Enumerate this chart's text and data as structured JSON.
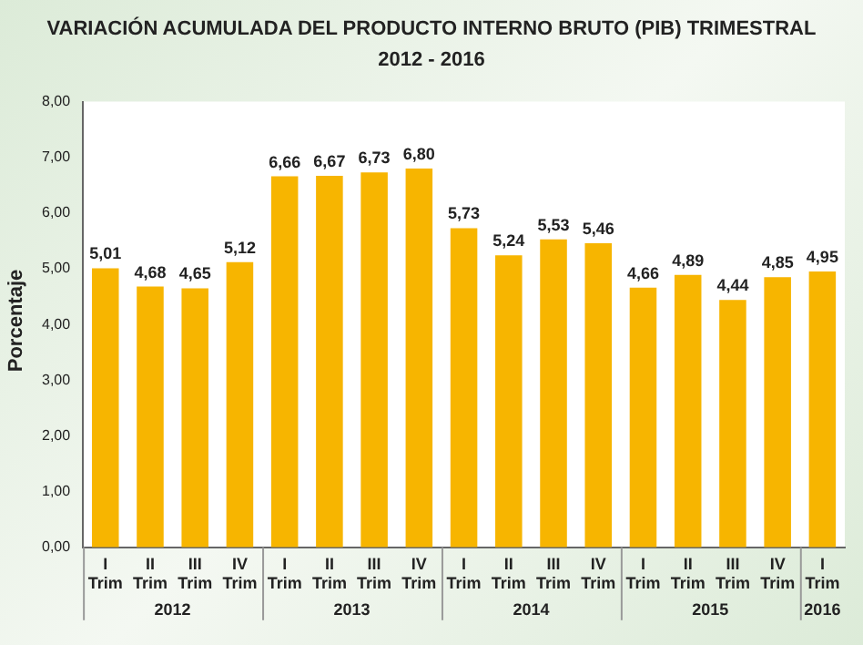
{
  "chart_data": {
    "type": "bar",
    "title": "VARIACIÓN ACUMULADA DEL PRODUCTO INTERNO BRUTO (PIB) TRIMESTRAL",
    "subtitle": "2012 - 2016",
    "ylabel": "Porcentaje",
    "categories": [
      "I Trim",
      "II Trim",
      "III Trim",
      "IV Trim",
      "I Trim",
      "II Trim",
      "III Trim",
      "IV Trim",
      "I Trim",
      "II Trim",
      "III Trim",
      "IV Trim",
      "I Trim",
      "II Trim",
      "III Trim",
      "IV Trim",
      "I Trim"
    ],
    "values": [
      5.01,
      4.68,
      4.65,
      5.12,
      6.66,
      6.67,
      6.73,
      6.8,
      5.73,
      5.24,
      5.53,
      5.46,
      4.66,
      4.89,
      4.44,
      4.85,
      4.95
    ],
    "value_labels": [
      "5,01",
      "4,68",
      "4,65",
      "5,12",
      "6,66",
      "6,67",
      "6,73",
      "6,80",
      "5,73",
      "5,24",
      "5,53",
      "5,46",
      "4,66",
      "4,89",
      "4,44",
      "4,85",
      "4,95"
    ],
    "color": "#f7b500",
    "annotations": [
      "2012",
      "2013",
      "2014",
      "2015",
      "2016"
    ],
    "ylim": [
      0,
      8
    ],
    "yticks": [
      {
        "value": 0,
        "label": "0,00"
      },
      {
        "value": 1,
        "label": "1,00"
      },
      {
        "value": 2,
        "label": "2,00"
      },
      {
        "value": 3,
        "label": "3,00"
      },
      {
        "value": 4,
        "label": "4,00"
      },
      {
        "value": 5,
        "label": "5,00"
      },
      {
        "value": 6,
        "label": "6,00"
      },
      {
        "value": 7,
        "label": "7,00"
      },
      {
        "value": 8,
        "label": "8,00"
      }
    ],
    "grid": false,
    "legend": false
  }
}
